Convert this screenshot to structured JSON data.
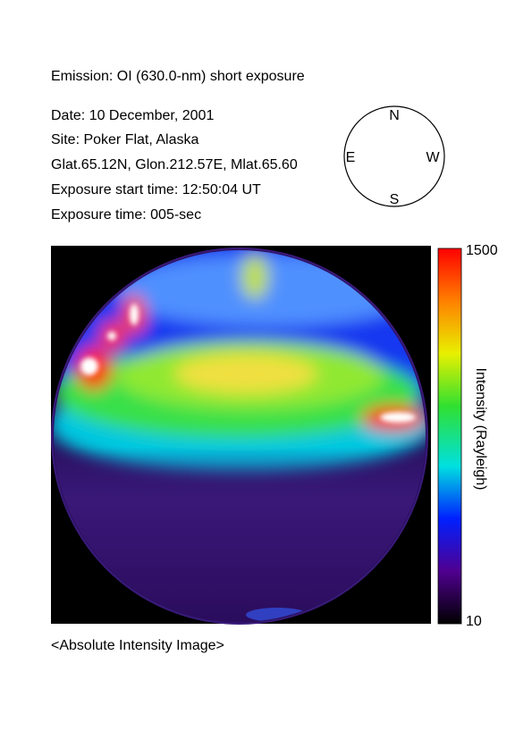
{
  "header": {
    "emission": "Emission: OI (630.0-nm) short exposure",
    "lines": [
      "Date: 10 December, 2001",
      "Site: Poker Flat, Alaska",
      "Glat.65.12N, Glon.212.57E, Mlat.65.60",
      "Exposure start time: 12:50:04 UT",
      "Exposure time: 005-sec"
    ]
  },
  "compass": {
    "north": "N",
    "south": "S",
    "east": "E",
    "west": "W"
  },
  "colorbar": {
    "max": 1500,
    "min": 10,
    "label": "Intensity (Rayleigh)"
  },
  "caption": "<Absolute Intensity Image>"
}
